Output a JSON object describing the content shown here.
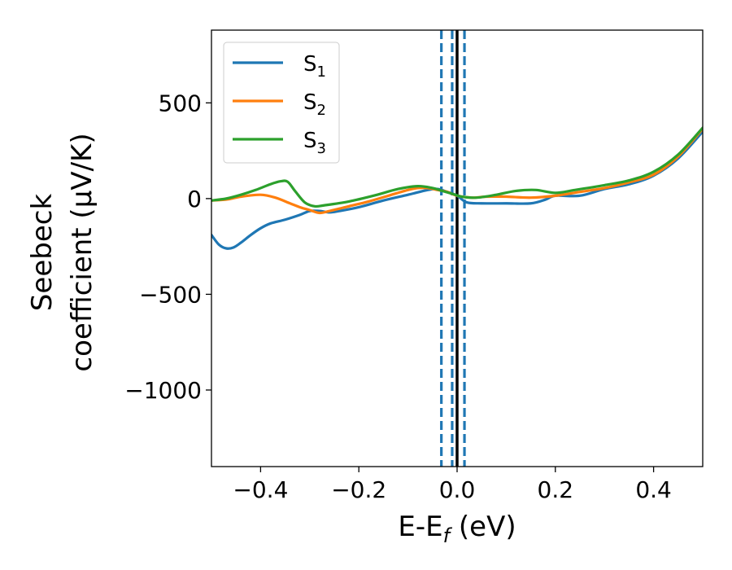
{
  "chart_data": {
    "type": "line",
    "xlabel": "E-E_f (eV)",
    "ylabel_line1": "Seebeck",
    "ylabel_line2": "coefficient  (μV/K)",
    "xlim": [
      -0.5,
      0.5
    ],
    "ylim": [
      -1400,
      880
    ],
    "x_ticks": [
      -0.4,
      -0.2,
      0.0,
      0.2,
      0.4
    ],
    "x_tick_labels": [
      "−0.4",
      "−0.2",
      "0.0",
      "0.2",
      "0.4"
    ],
    "y_ticks": [
      500,
      0,
      -500,
      -1000
    ],
    "y_tick_labels": [
      "500",
      "0",
      "−500",
      "−1000"
    ],
    "grid": false,
    "legend_position": "top-left",
    "vertical_lines": [
      {
        "x": -0.032,
        "style": "dashed",
        "color": "#1f77b4"
      },
      {
        "x": -0.01,
        "style": "dashed",
        "color": "#1f77b4"
      },
      {
        "x": 0.0,
        "style": "solid",
        "color": "#000000"
      },
      {
        "x": 0.015,
        "style": "dashed",
        "color": "#1f77b4"
      }
    ],
    "series": [
      {
        "name": "S_1",
        "legend_main": "S",
        "legend_sub": "1",
        "color": "#1f77b4",
        "x": [
          -0.5,
          -0.485,
          -0.47,
          -0.455,
          -0.44,
          -0.42,
          -0.4,
          -0.38,
          -0.35,
          -0.32,
          -0.3,
          -0.28,
          -0.26,
          -0.24,
          -0.2,
          -0.15,
          -0.1,
          -0.06,
          -0.04,
          -0.02,
          0.0,
          0.02,
          0.05,
          0.1,
          0.15,
          0.18,
          0.2,
          0.25,
          0.3,
          0.35,
          0.4,
          0.45,
          0.5
        ],
        "y": [
          -190,
          -240,
          -260,
          -255,
          -230,
          -190,
          -155,
          -130,
          -110,
          -85,
          -65,
          -65,
          -72,
          -65,
          -45,
          -10,
          20,
          45,
          50,
          35,
          15,
          -20,
          -25,
          -25,
          -25,
          -5,
          15,
          15,
          50,
          75,
          120,
          210,
          350
        ]
      },
      {
        "name": "S_2",
        "legend_main": "S",
        "legend_sub": "2",
        "color": "#ff7f0e",
        "x": [
          -0.5,
          -0.47,
          -0.44,
          -0.4,
          -0.37,
          -0.34,
          -0.32,
          -0.3,
          -0.28,
          -0.26,
          -0.22,
          -0.18,
          -0.14,
          -0.1,
          -0.08,
          -0.06,
          -0.04,
          -0.02,
          0.0,
          0.03,
          0.06,
          0.1,
          0.15,
          0.2,
          0.25,
          0.3,
          0.35,
          0.4,
          0.45,
          0.5
        ],
        "y": [
          -10,
          -5,
          10,
          20,
          5,
          -25,
          -45,
          -60,
          -75,
          -65,
          -40,
          -15,
          15,
          45,
          55,
          55,
          45,
          35,
          15,
          5,
          10,
          10,
          5,
          15,
          35,
          55,
          85,
          125,
          220,
          365
        ]
      },
      {
        "name": "S_3",
        "legend_main": "S",
        "legend_sub": "3",
        "color": "#2ca02c",
        "x": [
          -0.5,
          -0.47,
          -0.44,
          -0.41,
          -0.38,
          -0.36,
          -0.345,
          -0.33,
          -0.31,
          -0.29,
          -0.27,
          -0.22,
          -0.17,
          -0.12,
          -0.08,
          -0.05,
          -0.03,
          -0.01,
          0.01,
          0.04,
          0.08,
          0.12,
          0.16,
          0.2,
          0.24,
          0.3,
          0.35,
          0.4,
          0.45,
          0.5
        ],
        "y": [
          -10,
          0,
          20,
          45,
          75,
          90,
          88,
          40,
          -20,
          -40,
          -35,
          -15,
          15,
          50,
          65,
          55,
          40,
          25,
          10,
          5,
          20,
          40,
          45,
          30,
          45,
          70,
          95,
          140,
          230,
          370
        ]
      }
    ]
  }
}
